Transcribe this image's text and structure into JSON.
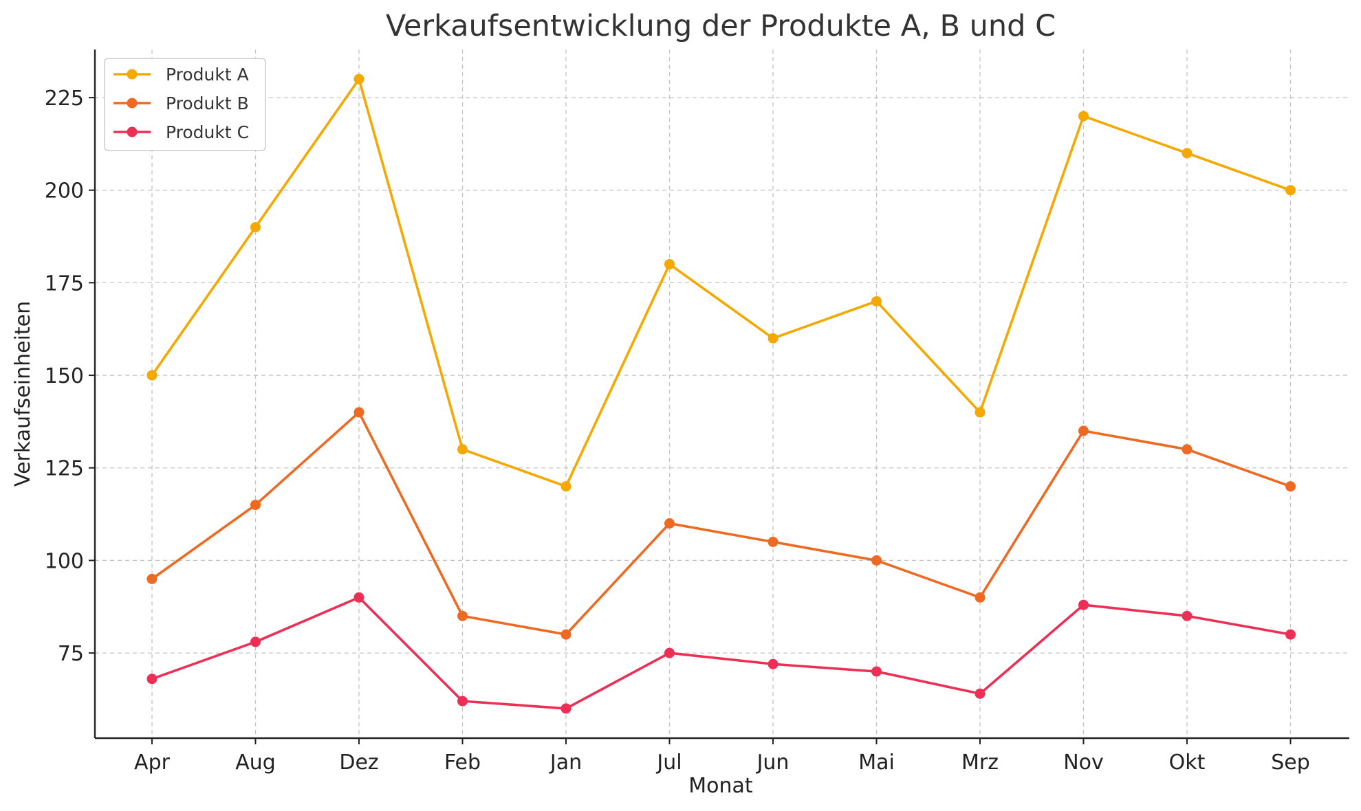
{
  "chart_data": {
    "type": "line",
    "title": "Verkaufsentwicklung der Produkte A, B und C",
    "xlabel": "Monat",
    "ylabel": "Verkaufseinheiten",
    "categories": [
      "Apr",
      "Aug",
      "Dez",
      "Feb",
      "Jan",
      "Jul",
      "Jun",
      "Mai",
      "Mrz",
      "Nov",
      "Okt",
      "Sep"
    ],
    "ylim": [
      52,
      238
    ],
    "yticks": [
      75,
      100,
      125,
      150,
      175,
      200,
      225
    ],
    "grid": true,
    "legend_position": "top-left",
    "series": [
      {
        "name": "Produkt A",
        "color": "#F5A800",
        "values": [
          150,
          190,
          230,
          130,
          120,
          180,
          160,
          170,
          140,
          220,
          210,
          200
        ]
      },
      {
        "name": "Produkt B",
        "color": "#EE6A22",
        "values": [
          95,
          115,
          140,
          85,
          80,
          110,
          105,
          100,
          90,
          135,
          130,
          120
        ]
      },
      {
        "name": "Produkt C",
        "color": "#EE2F55",
        "values": [
          68,
          78,
          90,
          62,
          60,
          75,
          72,
          70,
          64,
          88,
          85,
          80
        ]
      }
    ]
  }
}
